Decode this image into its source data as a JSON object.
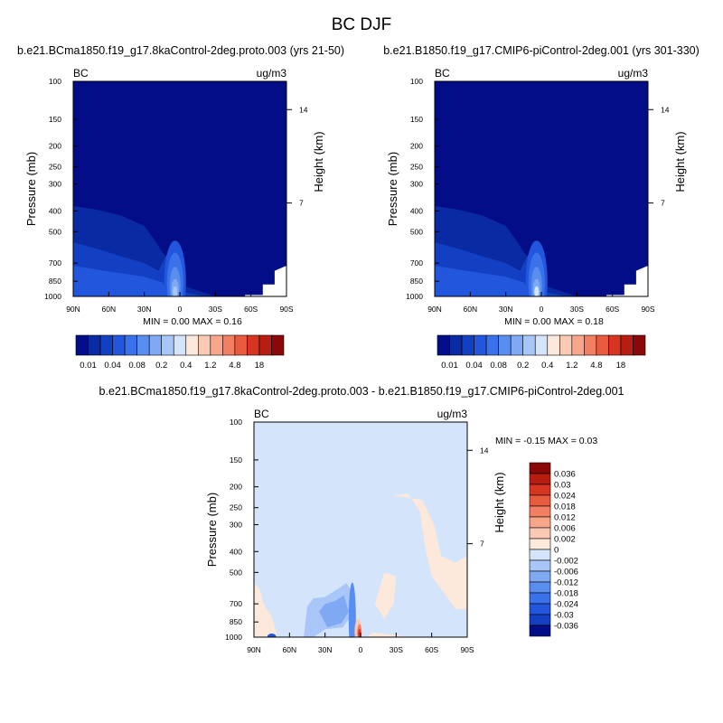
{
  "figure": {
    "title": "BC DJF"
  },
  "chart_data": [
    {
      "type": "heatmap",
      "panel": "top-left",
      "title": "b.e21.BCma1850.f19_g17.8kaControl-2deg.proto.003 (yrs 21-50)",
      "left_label": "BC",
      "right_label": "ug/m3",
      "xlabel": "",
      "ylabel": "Pressure (mb)",
      "y2label": "Height (km)",
      "x_ticks": [
        "90N",
        "60N",
        "30N",
        "0",
        "30S",
        "60S",
        "90S"
      ],
      "x_range": [
        90,
        -90
      ],
      "y_ticks": [
        100,
        150,
        200,
        250,
        300,
        400,
        500,
        700,
        850,
        1000
      ],
      "y_range": [
        100,
        1000
      ],
      "y_scale": "log",
      "y2_ticks": [
        14,
        7
      ],
      "stats": {
        "min_label": "MIN =",
        "min": "0.00",
        "max_label": "MAX =",
        "max": "0.16"
      },
      "colorbar_orientation": "horizontal",
      "colorbar_labels": [
        "0.01",
        "0.04",
        "0.08",
        "0.2",
        "0.4",
        "1.2",
        "4.8",
        "18"
      ],
      "colorbar_colors": [
        "#030d87",
        "#0a2aa3",
        "#1340c2",
        "#2257dd",
        "#3a72ec",
        "#5a8df0",
        "#7fa9f3",
        "#a8c6f7",
        "#d4e4fb",
        "#fde8dc",
        "#fbc9b2",
        "#f8a68a",
        "#f27f62",
        "#e95a3e",
        "#d73521",
        "#b81d12",
        "#8a0808"
      ],
      "field_summary": "Near-zero concentration (deep blue) fills most of the troposphere; slightly higher values below ~400 mb in the Northern Hemisphere, with a maximum plume near the surface just north of the equator reaching up to ~600 mb. Missing data (white) under the Antarctic surface at high southern latitudes."
    },
    {
      "type": "heatmap",
      "panel": "top-right",
      "title": "b.e21.B1850.f19_g17.CMIP6-piControl-2deg.001 (yrs 301-330)",
      "left_label": "BC",
      "right_label": "ug/m3",
      "xlabel": "",
      "ylabel": "Pressure (mb)",
      "y2label": "Height (km)",
      "x_ticks": [
        "90N",
        "60N",
        "30N",
        "0",
        "30S",
        "60S",
        "90S"
      ],
      "x_range": [
        90,
        -90
      ],
      "y_ticks": [
        100,
        150,
        200,
        250,
        300,
        400,
        500,
        700,
        850,
        1000
      ],
      "y_range": [
        100,
        1000
      ],
      "y_scale": "log",
      "y2_ticks": [
        14,
        7
      ],
      "stats": {
        "min_label": "MIN =",
        "min": "0.00",
        "max_label": "MAX =",
        "max": "0.18"
      },
      "colorbar_orientation": "horizontal",
      "colorbar_labels": [
        "0.01",
        "0.04",
        "0.08",
        "0.2",
        "0.4",
        "1.2",
        "4.8",
        "18"
      ],
      "colorbar_colors": [
        "#030d87",
        "#0a2aa3",
        "#1340c2",
        "#2257dd",
        "#3a72ec",
        "#5a8df0",
        "#7fa9f3",
        "#a8c6f7",
        "#d4e4fb",
        "#fde8dc",
        "#fbc9b2",
        "#f8a68a",
        "#f27f62",
        "#e95a3e",
        "#d73521",
        "#b81d12",
        "#8a0808"
      ],
      "field_summary": "Nearly identical pattern to the left panel with a slightly stronger surface maximum just north of the equator."
    },
    {
      "type": "heatmap",
      "panel": "bottom-difference",
      "title": "b.e21.BCma1850.f19_g17.8kaControl-2deg.proto.003 - b.e21.B1850.f19_g17.CMIP6-piControl-2deg.001",
      "left_label": "BC",
      "right_label": "ug/m3",
      "xlabel": "",
      "ylabel": "Pressure (mb)",
      "y2label": "Height (km)",
      "x_ticks": [
        "90N",
        "60N",
        "30N",
        "0",
        "30S",
        "60S",
        "90S"
      ],
      "x_range": [
        90,
        -90
      ],
      "y_ticks": [
        100,
        150,
        200,
        250,
        300,
        400,
        500,
        700,
        850,
        1000
      ],
      "y_range": [
        100,
        1000
      ],
      "y_scale": "log",
      "y2_ticks": [
        14,
        7
      ],
      "stats": {
        "min_label": "MIN =",
        "min": "-0.15",
        "max_label": "MAX =",
        "max": "0.03"
      },
      "colorbar_orientation": "vertical",
      "colorbar_labels": [
        "0.036",
        "0.03",
        "0.024",
        "0.018",
        "0.012",
        "0.006",
        "0.002",
        "0",
        "-0.002",
        "-0.006",
        "-0.012",
        "-0.018",
        "-0.024",
        "-0.03",
        "-0.036"
      ],
      "colorbar_colors": [
        "#8a0808",
        "#b81d12",
        "#d73521",
        "#e95a3e",
        "#f27f62",
        "#f8a68a",
        "#fbc9b2",
        "#fde8dc",
        "#d4e4fb",
        "#a8c6f7",
        "#7fa9f3",
        "#5a8df0",
        "#3a72ec",
        "#2257dd",
        "#1340c2",
        "#030d87"
      ],
      "field_summary": "Small differences: light blue (-0.002 to 0) over most of the domain; light peach positive areas in the tropical/subtropical Southern Hemisphere upper troposphere and near 90N; a few blue negative patches in the Northern Hemisphere lower troposphere; a strong red positive core and blue negative values near the surface just north of the equator."
    }
  ]
}
